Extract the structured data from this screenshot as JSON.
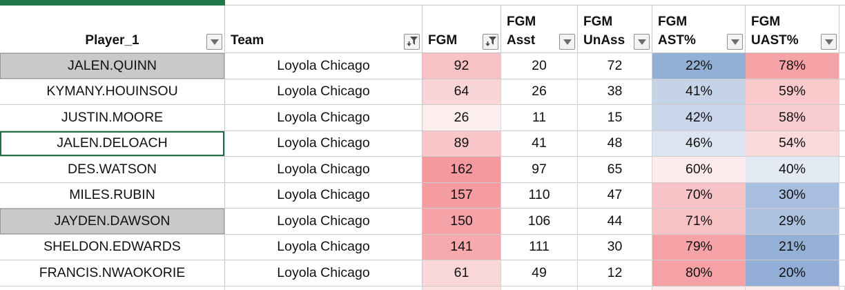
{
  "theme": {
    "tab_color_bar": "#21794a",
    "gridline": "#c8c8c8",
    "selected_cell_border": "#1f7145",
    "highlight_cell_bg": "#c9c9c9",
    "highlight_cell_border": "#9b9b9b",
    "filter_button_bg": "#f3f3f3",
    "filter_button_border": "#8f8f8f",
    "icon_color": "#4a4a4a"
  },
  "columns": [
    {
      "id": "player",
      "label": "Player_1",
      "filter_icon": "chevron-down",
      "align": "center"
    },
    {
      "id": "team",
      "label": "Team",
      "filter_icon": "funnel-filtered",
      "align": "left"
    },
    {
      "id": "fgm",
      "label": "FGM",
      "filter_icon": "funnel-filtered",
      "align": "left"
    },
    {
      "id": "fgm_asst",
      "line1": "FGM",
      "line2": "Asst",
      "filter_icon": "chevron-down"
    },
    {
      "id": "fgm_unass",
      "line1": "FGM",
      "line2": "UnAss",
      "filter_icon": "chevron-down"
    },
    {
      "id": "fgm_ast",
      "line1": "FGM",
      "line2": "AST%",
      "filter_icon": "chevron-down"
    },
    {
      "id": "fgm_uast",
      "line1": "FGM",
      "line2": "UAST%",
      "filter_icon": "chevron-down"
    }
  ],
  "rows": [
    {
      "player": "JALEN.QUINN",
      "team": "Loyola Chicago",
      "fgm": "92",
      "asst": "20",
      "unass": "72",
      "ast_pct": "22%",
      "uast_pct": "78%",
      "player_bg": "#c9c9c9",
      "fgm_bg": "#f8c2c5",
      "ast_bg": "#92afd6",
      "uast_bg": "#f5a3a7",
      "highlighted": true,
      "selected": false
    },
    {
      "player": "KYMANY.HOUINSOU",
      "team": "Loyola Chicago",
      "fgm": "64",
      "asst": "26",
      "unass": "38",
      "ast_pct": "41%",
      "uast_pct": "59%",
      "player_bg": "",
      "fgm_bg": "#fad5d7",
      "ast_bg": "#c5d3e9",
      "uast_bg": "#f9c9cc",
      "highlighted": false,
      "selected": false
    },
    {
      "player": "JUSTIN.MOORE",
      "team": "Loyola Chicago",
      "fgm": "26",
      "asst": "11",
      "unass": "15",
      "ast_pct": "42%",
      "uast_pct": "58%",
      "player_bg": "",
      "fgm_bg": "#fdeeee",
      "ast_bg": "#c9d5eb",
      "uast_bg": "#f9cccf",
      "highlighted": false,
      "selected": false
    },
    {
      "player": "JALEN.DELOACH",
      "team": "Loyola Chicago",
      "fgm": "89",
      "asst": "41",
      "unass": "48",
      "ast_pct": "46%",
      "uast_pct": "54%",
      "player_bg": "",
      "fgm_bg": "#f8c6c8",
      "ast_bg": "#dde4f1",
      "uast_bg": "#fbdadc",
      "highlighted": false,
      "selected": true
    },
    {
      "player": "DES.WATSON",
      "team": "Loyola Chicago",
      "fgm": "162",
      "asst": "97",
      "unass": "65",
      "ast_pct": "60%",
      "uast_pct": "40%",
      "player_bg": "",
      "fgm_bg": "#f4999e",
      "ast_bg": "#fdebec",
      "uast_bg": "#e3eaf4",
      "highlighted": false,
      "selected": false
    },
    {
      "player": "MILES.RUBIN",
      "team": "Loyola Chicago",
      "fgm": "157",
      "asst": "110",
      "unass": "47",
      "ast_pct": "70%",
      "uast_pct": "30%",
      "player_bg": "",
      "fgm_bg": "#f49ca0",
      "ast_bg": "#f8c3c6",
      "uast_bg": "#a8bede",
      "highlighted": false,
      "selected": false
    },
    {
      "player": "JAYDEN.DAWSON",
      "team": "Loyola Chicago",
      "fgm": "150",
      "asst": "106",
      "unass": "44",
      "ast_pct": "71%",
      "uast_pct": "29%",
      "player_bg": "#c9c9c9",
      "fgm_bg": "#f5a3a7",
      "ast_bg": "#f8c2c5",
      "uast_bg": "#adc2e0",
      "highlighted": true,
      "selected": false
    },
    {
      "player": "SHELDON.EDWARDS",
      "team": "Loyola Chicago",
      "fgm": "141",
      "asst": "111",
      "unass": "30",
      "ast_pct": "79%",
      "uast_pct": "21%",
      "player_bg": "",
      "fgm_bg": "#f6aaae",
      "ast_bg": "#f5a3a7",
      "uast_bg": "#94b0d7",
      "highlighted": false,
      "selected": false
    },
    {
      "player": "FRANCIS.NWAOKORIE",
      "team": "Loyola Chicago",
      "fgm": "61",
      "asst": "49",
      "unass": "12",
      "ast_pct": "80%",
      "uast_pct": "20%",
      "player_bg": "",
      "fgm_bg": "#fad8da",
      "ast_bg": "#f5a1a5",
      "uast_bg": "#92aed6",
      "highlighted": false,
      "selected": false
    }
  ],
  "partial_row_bg": {
    "player": "#ffffff",
    "team": "#ffffff",
    "fgm": "#fbe0e2",
    "asst": "#ffffff",
    "unass": "#ffffff",
    "ast": "#fdeced",
    "uast": "#fdecee",
    "sliver": "#ffffff"
  }
}
